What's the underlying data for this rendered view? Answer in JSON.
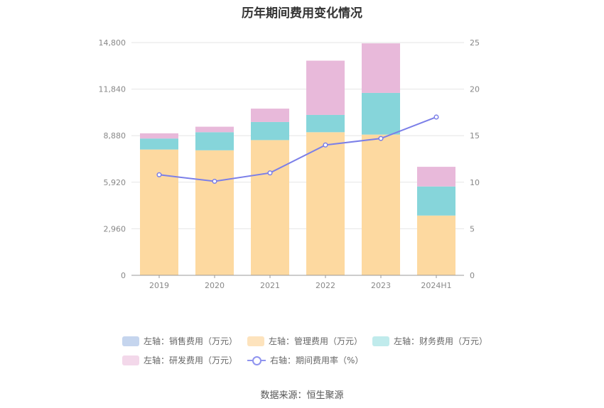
{
  "title": "历年期间费用变化情况",
  "source": "数据来源：恒生聚源",
  "colors": {
    "sales": "#c5d5ee",
    "admin": "#fdd9a0",
    "finance": "#86d5da",
    "rnd": "#e8b9da",
    "rate": "#7b7fe8"
  },
  "legend": [
    {
      "label": "左轴：销售费用（万元）",
      "color": "#c5d5ee"
    },
    {
      "label": "左轴：管理费用（万元）",
      "color": "#fde3bd"
    },
    {
      "label": "左轴：财务费用（万元）",
      "color": "#c0ebec"
    },
    {
      "label": "左轴：研发费用（万元）",
      "color": "#f3d8ea"
    },
    {
      "label": "右轴：期间费用率（%）",
      "color": "#8f94ef"
    }
  ],
  "chart_data": {
    "type": "bar",
    "stacked": true,
    "categories": [
      "2019",
      "2020",
      "2021",
      "2022",
      "2023",
      "2024H1"
    ],
    "series": [
      {
        "name": "左轴：销售费用（万元）",
        "axis": "left",
        "values": [
          0,
          0,
          0,
          0,
          0,
          0
        ]
      },
      {
        "name": "左轴：管理费用（万元）",
        "axis": "left",
        "values": [
          8000,
          7950,
          8600,
          9100,
          8950,
          3800
        ]
      },
      {
        "name": "左轴：财务费用（万元）",
        "axis": "left",
        "values": [
          700,
          1150,
          1150,
          1100,
          2650,
          1850
        ]
      },
      {
        "name": "左轴：研发费用（万元）",
        "axis": "left",
        "values": [
          330,
          350,
          850,
          3450,
          3150,
          1250
        ]
      },
      {
        "name": "右轴：期间费用率（%）",
        "axis": "right",
        "type": "line",
        "values": [
          10.8,
          10.1,
          11.0,
          14.0,
          14.7,
          17.0
        ]
      }
    ],
    "left_axis": {
      "ticks": [
        "0",
        "2,960",
        "5,920",
        "8,880",
        "11,840",
        "14,800"
      ],
      "ylim": [
        0,
        14800
      ]
    },
    "right_axis": {
      "ticks": [
        "0",
        "5",
        "10",
        "15",
        "20",
        "25"
      ],
      "ylim": [
        0,
        25
      ]
    },
    "grid": true,
    "legend_position": "bottom"
  }
}
